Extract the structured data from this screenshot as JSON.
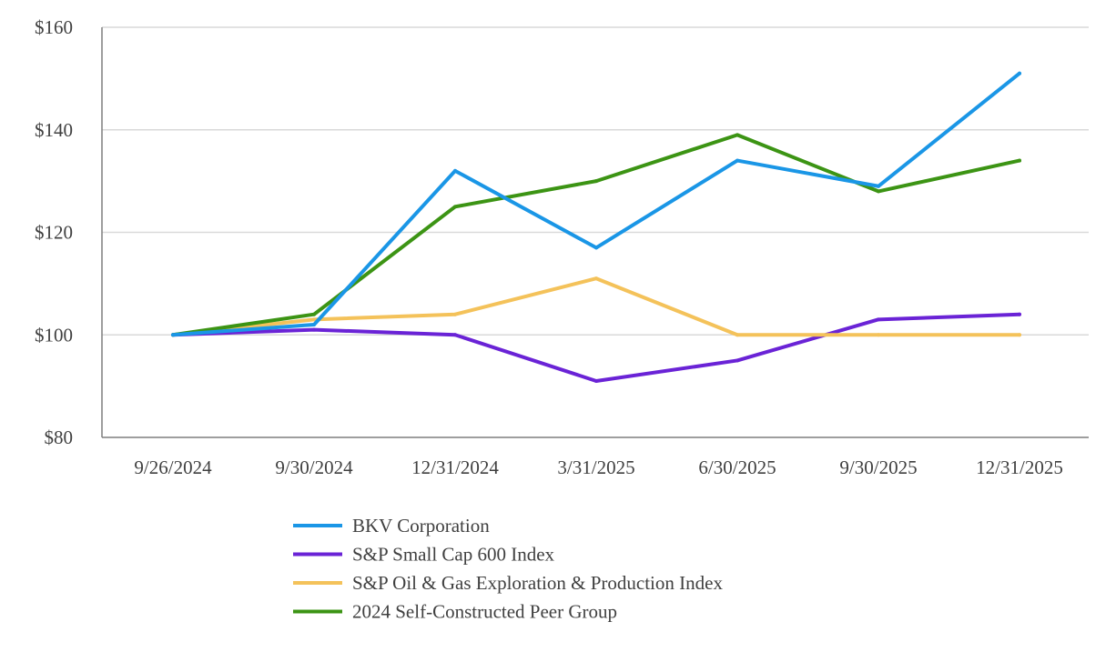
{
  "chart_data": {
    "type": "line",
    "title": "",
    "xlabel": "",
    "ylabel": "",
    "categories": [
      "9/26/2024",
      "9/30/2024",
      "12/31/2024",
      "3/31/2025",
      "6/30/2025",
      "9/30/2025",
      "12/31/2025"
    ],
    "ylim": [
      80,
      160
    ],
    "yticks": [
      80,
      100,
      120,
      140,
      160
    ],
    "ytick_labels": [
      "$80",
      "$100",
      "$120",
      "$140",
      "$160"
    ],
    "grid": true,
    "legend_position": "bottom",
    "series": [
      {
        "name": "BKV Corporation",
        "color": "#1a96e6",
        "values": [
          100,
          102,
          132,
          117,
          134,
          129,
          151
        ]
      },
      {
        "name": "S&P Small Cap 600 Index",
        "color": "#6a23d6",
        "values": [
          100,
          101,
          100,
          91,
          95,
          103,
          104
        ]
      },
      {
        "name": "S&P Oil & Gas Exploration & Production Index",
        "color": "#f4c25a",
        "values": [
          100,
          103,
          104,
          111,
          100,
          100,
          100
        ]
      },
      {
        "name": "2024 Self-Constructed Peer Group",
        "color": "#3c9414",
        "values": [
          100,
          104,
          125,
          130,
          139,
          128,
          134
        ]
      }
    ]
  }
}
